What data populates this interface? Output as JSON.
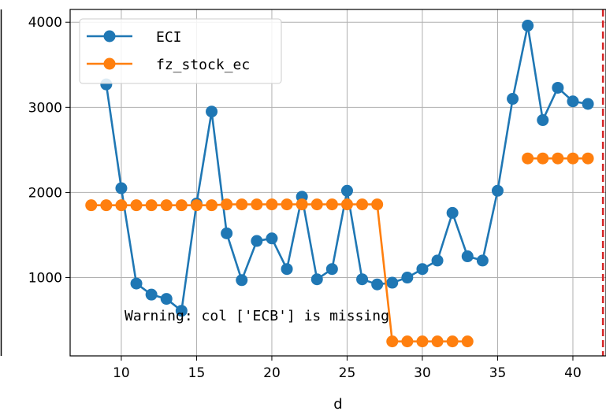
{
  "chart_data": {
    "type": "line",
    "xlabel": "d",
    "ylabel": "",
    "xlim": [
      6.6,
      42.2
    ],
    "ylim": [
      80,
      4150
    ],
    "x_ticks": [
      10,
      15,
      20,
      25,
      30,
      35,
      40
    ],
    "y_ticks": [
      1000,
      2000,
      3000,
      4000
    ],
    "grid": true,
    "legend_position": "top-left",
    "vline": {
      "x": 42,
      "color": "#d62728",
      "style": "dashed"
    },
    "annotation": "Warning: col ['ECB'] is missing",
    "series": [
      {
        "name": "ECI",
        "color": "#1f77b4",
        "x": [
          9,
          10,
          11,
          12,
          13,
          14,
          15,
          16,
          17,
          18,
          19,
          20,
          21,
          22,
          23,
          24,
          25,
          26,
          27,
          28,
          29,
          30,
          31,
          32,
          33,
          34,
          35,
          36,
          37,
          38,
          39,
          40,
          41
        ],
        "y": [
          3270,
          2050,
          930,
          800,
          750,
          610,
          1870,
          2950,
          1520,
          970,
          1430,
          1460,
          1100,
          1950,
          980,
          1100,
          2020,
          980,
          920,
          940,
          1000,
          1100,
          1200,
          1760,
          1250,
          1200,
          2020,
          3100,
          3960,
          2850,
          3230,
          3070,
          3040
        ]
      },
      {
        "name": "fz_stock_ec",
        "color": "#ff7f0e",
        "x": [
          8,
          9,
          10,
          11,
          12,
          13,
          14,
          15,
          16,
          17,
          18,
          19,
          20,
          21,
          22,
          23,
          24,
          25,
          26,
          27,
          28,
          29,
          30,
          31,
          32,
          33,
          37,
          38,
          39,
          40,
          41
        ],
        "y": [
          1850,
          1850,
          1850,
          1850,
          1850,
          1850,
          1850,
          1850,
          1850,
          1860,
          1860,
          1860,
          1860,
          1860,
          1860,
          1860,
          1860,
          1860,
          1860,
          1860,
          250,
          250,
          250,
          250,
          250,
          250,
          2400,
          2400,
          2400,
          2400,
          2400
        ],
        "segments": [
          [
            0,
            25
          ],
          [
            26,
            30
          ]
        ]
      }
    ]
  }
}
